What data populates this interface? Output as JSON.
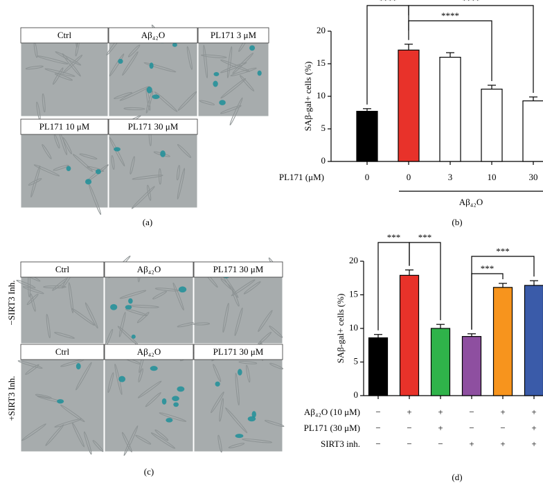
{
  "chart_data": [
    {
      "type": "bar",
      "ylabel": "SAβ-gal+ cells (%)",
      "categories": [
        "0",
        "0",
        "3",
        "10",
        "30"
      ],
      "category_title": "PL171 (μM)",
      "group_label": "Aβ₄₂O",
      "values": [
        7.7,
        17.1,
        16.0,
        11.1,
        9.3
      ],
      "errors": [
        0.4,
        0.9,
        0.7,
        0.6,
        0.6
      ],
      "colors": [
        "#000000",
        "#e8322a",
        "#ffffff",
        "#ffffff",
        "#ffffff"
      ],
      "ylim": [
        0,
        20
      ],
      "yticks": [
        0,
        5,
        10,
        15,
        20
      ],
      "annotations": [
        "****",
        "****",
        "****"
      ],
      "caption": "(b)"
    },
    {
      "type": "bar",
      "ylabel": "SAβ-gal+ cells (%)",
      "values": [
        8.6,
        17.9,
        10.0,
        8.8,
        16.1,
        16.4
      ],
      "errors": [
        0.5,
        0.8,
        0.6,
        0.4,
        0.6,
        0.7
      ],
      "colors": [
        "#000000",
        "#e8322a",
        "#2fb34a",
        "#8e4fa0",
        "#f7941d",
        "#3a5ba9"
      ],
      "conditions": [
        {
          "name": "Aβ₄₂O (10 μM)",
          "signs": [
            "−",
            "+",
            "+",
            "−",
            "+",
            "+"
          ]
        },
        {
          "name": "PL171 (30 μM)",
          "signs": [
            "−",
            "−",
            "+",
            "−",
            "−",
            "+"
          ]
        },
        {
          "name": "SIRT3 inh.",
          "signs": [
            "−",
            "−",
            "−",
            "+",
            "+",
            "+"
          ]
        }
      ],
      "ylim": [
        0,
        20
      ],
      "yticks": [
        0,
        5,
        10,
        15,
        20
      ],
      "annotations": [
        "***",
        "***",
        "***",
        "***"
      ],
      "caption": "(d)"
    }
  ],
  "panel_a": {
    "labels": [
      "Ctrl",
      "Aβ₄₂O",
      "PL171 3 μM",
      "PL171 10 μM",
      "PL171 30 μM"
    ],
    "caption": "(a)"
  },
  "panel_c": {
    "row_labels": [
      "−SIRT3 Inh.",
      "+SIRT3 Inh."
    ],
    "rows": [
      [
        "Ctrl",
        "Aβ₄₂O",
        "PL171 30 μM"
      ],
      [
        "Ctrl",
        "Aβ₄₂O",
        "PL171 30 μM"
      ]
    ],
    "caption": "(c)"
  }
}
